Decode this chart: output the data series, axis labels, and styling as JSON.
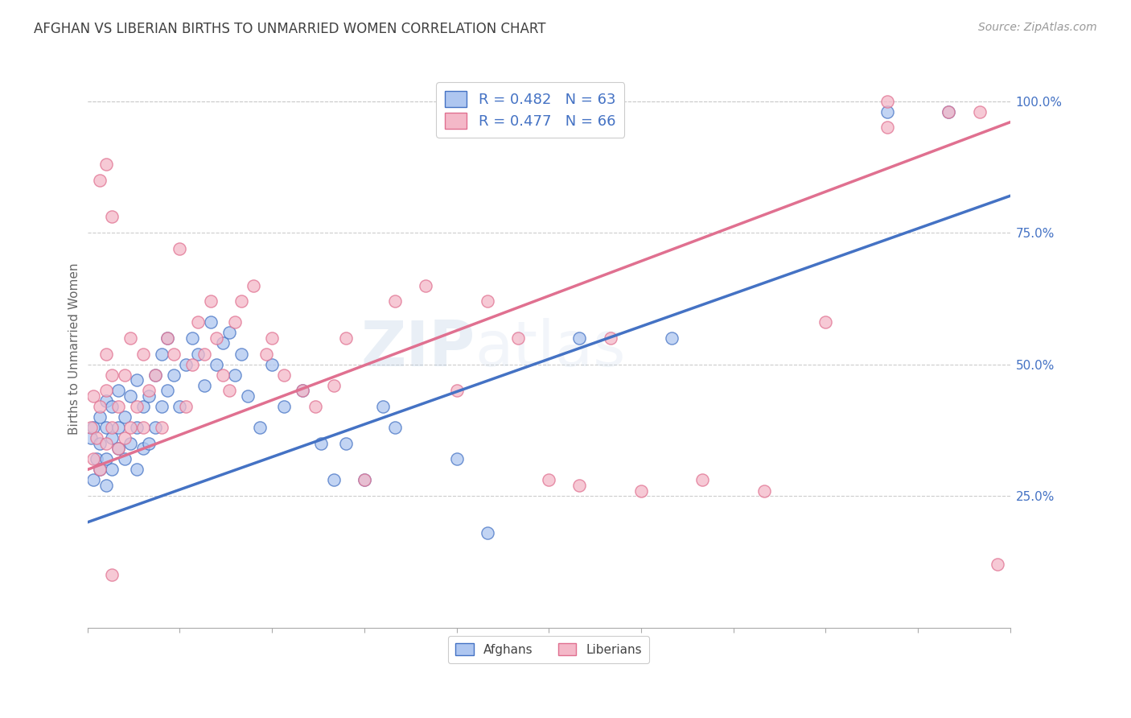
{
  "title": "AFGHAN VS LIBERIAN BIRTHS TO UNMARRIED WOMEN CORRELATION CHART",
  "source": "Source: ZipAtlas.com",
  "ylabel": "Births to Unmarried Women",
  "legend_afghan": {
    "R": 0.482,
    "N": 63,
    "color": "#aec6f0"
  },
  "legend_liberian": {
    "R": 0.477,
    "N": 66,
    "color": "#f4b8c8"
  },
  "afghan_line_color": "#4472c4",
  "liberian_line_color": "#e07090",
  "scatter_afghan_color": "#aec6f0",
  "scatter_afghan_edge": "#4472c4",
  "scatter_liberian_color": "#f4b8c8",
  "scatter_liberian_edge": "#e07090",
  "watermark": "ZIPatlas",
  "title_color": "#404040",
  "axis_tick_color": "#4472c4",
  "legend_R_N_color": "#4472c4",
  "xmin": 0.0,
  "xmax": 0.15,
  "ymin": 0.0,
  "ymax": 1.06,
  "afghan_line_x0": 0.0,
  "afghan_line_y0": 0.2,
  "afghan_line_x1": 0.15,
  "afghan_line_y1": 0.82,
  "liberian_line_x0": 0.0,
  "liberian_line_y0": 0.3,
  "liberian_line_x1": 0.15,
  "liberian_line_y1": 0.96,
  "afghan_scatter_x": [
    0.0005,
    0.001,
    0.001,
    0.0015,
    0.002,
    0.002,
    0.002,
    0.003,
    0.003,
    0.003,
    0.003,
    0.004,
    0.004,
    0.004,
    0.005,
    0.005,
    0.005,
    0.006,
    0.006,
    0.007,
    0.007,
    0.008,
    0.008,
    0.008,
    0.009,
    0.009,
    0.01,
    0.01,
    0.011,
    0.011,
    0.012,
    0.012,
    0.013,
    0.013,
    0.014,
    0.015,
    0.016,
    0.017,
    0.018,
    0.019,
    0.02,
    0.021,
    0.022,
    0.023,
    0.024,
    0.025,
    0.026,
    0.028,
    0.03,
    0.032,
    0.035,
    0.038,
    0.04,
    0.042,
    0.045,
    0.048,
    0.05,
    0.06,
    0.065,
    0.08,
    0.095,
    0.13,
    0.14
  ],
  "afghan_scatter_y": [
    0.36,
    0.28,
    0.38,
    0.32,
    0.3,
    0.35,
    0.4,
    0.27,
    0.32,
    0.38,
    0.43,
    0.3,
    0.36,
    0.42,
    0.34,
    0.38,
    0.45,
    0.32,
    0.4,
    0.35,
    0.44,
    0.3,
    0.38,
    0.47,
    0.34,
    0.42,
    0.35,
    0.44,
    0.38,
    0.48,
    0.42,
    0.52,
    0.45,
    0.55,
    0.48,
    0.42,
    0.5,
    0.55,
    0.52,
    0.46,
    0.58,
    0.5,
    0.54,
    0.56,
    0.48,
    0.52,
    0.44,
    0.38,
    0.5,
    0.42,
    0.45,
    0.35,
    0.28,
    0.35,
    0.28,
    0.42,
    0.38,
    0.32,
    0.18,
    0.55,
    0.55,
    0.98,
    0.98
  ],
  "liberian_scatter_x": [
    0.0005,
    0.001,
    0.001,
    0.0015,
    0.002,
    0.002,
    0.003,
    0.003,
    0.003,
    0.004,
    0.004,
    0.005,
    0.005,
    0.006,
    0.006,
    0.007,
    0.007,
    0.008,
    0.009,
    0.009,
    0.01,
    0.011,
    0.012,
    0.013,
    0.014,
    0.015,
    0.016,
    0.017,
    0.018,
    0.019,
    0.02,
    0.021,
    0.022,
    0.023,
    0.024,
    0.025,
    0.027,
    0.029,
    0.03,
    0.032,
    0.035,
    0.037,
    0.04,
    0.042,
    0.045,
    0.05,
    0.055,
    0.06,
    0.065,
    0.07,
    0.075,
    0.08,
    0.085,
    0.09,
    0.1,
    0.11,
    0.12,
    0.13,
    0.13,
    0.14,
    0.145,
    0.148,
    0.002,
    0.003,
    0.004,
    0.004
  ],
  "liberian_scatter_y": [
    0.38,
    0.32,
    0.44,
    0.36,
    0.3,
    0.42,
    0.35,
    0.45,
    0.52,
    0.38,
    0.48,
    0.34,
    0.42,
    0.36,
    0.48,
    0.38,
    0.55,
    0.42,
    0.38,
    0.52,
    0.45,
    0.48,
    0.38,
    0.55,
    0.52,
    0.72,
    0.42,
    0.5,
    0.58,
    0.52,
    0.62,
    0.55,
    0.48,
    0.45,
    0.58,
    0.62,
    0.65,
    0.52,
    0.55,
    0.48,
    0.45,
    0.42,
    0.46,
    0.55,
    0.28,
    0.62,
    0.65,
    0.45,
    0.62,
    0.55,
    0.28,
    0.27,
    0.55,
    0.26,
    0.28,
    0.26,
    0.58,
    0.95,
    1.0,
    0.98,
    0.98,
    0.12,
    0.85,
    0.88,
    0.78,
    0.1
  ]
}
